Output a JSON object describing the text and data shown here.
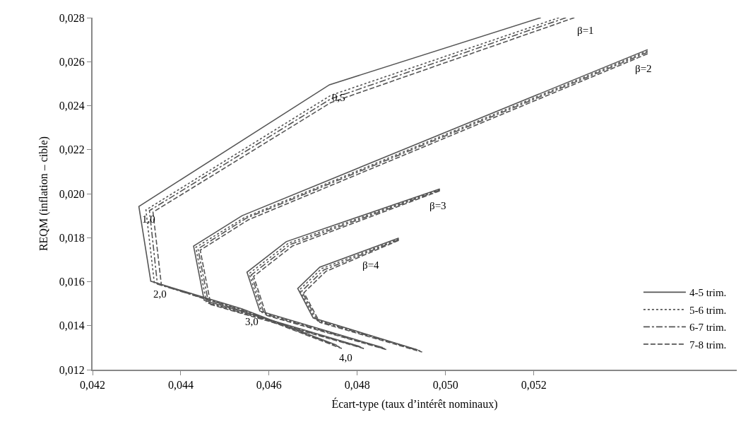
{
  "chart_data": {
    "type": "line",
    "xlabel": "Écart-type (taux d’intérêt nominaux)",
    "ylabel": "REQM (inflation – cible)",
    "xlim": [
      0.042,
      0.0566
    ],
    "ylim": [
      0.012,
      0.028
    ],
    "xticks": [
      {
        "value": 0.042,
        "label": "0,042"
      },
      {
        "value": 0.044,
        "label": "0,044"
      },
      {
        "value": 0.046,
        "label": "0,046"
      },
      {
        "value": 0.048,
        "label": "0,048"
      },
      {
        "value": 0.05,
        "label": "0,050"
      },
      {
        "value": 0.052,
        "label": "0,052"
      }
    ],
    "yticks": [
      {
        "value": 0.012,
        "label": "0,012"
      },
      {
        "value": 0.014,
        "label": "0,014"
      },
      {
        "value": 0.016,
        "label": "0,016"
      },
      {
        "value": 0.018,
        "label": "0,018"
      },
      {
        "value": 0.02,
        "label": "0,020"
      },
      {
        "value": 0.022,
        "label": "0,022"
      },
      {
        "value": 0.024,
        "label": "0,024"
      },
      {
        "value": 0.026,
        "label": "0,026"
      },
      {
        "value": 0.028,
        "label": "0,028"
      }
    ],
    "grid": false,
    "legend": "bottom right",
    "marker": "none",
    "series": [
      {
        "name": "4-5 trim.",
        "color": "#555555",
        "line_style": "solid",
        "x": [
          0.05216,
          0.04737,
          0.04305,
          0.04332,
          0.04539,
          0.04753
        ],
        "values": [
          0.028,
          0.02495,
          0.01942,
          0.01602,
          0.01476,
          0.01312
        ]
      },
      {
        "name": "5-6 trim.",
        "color": "#555555",
        "line_style": "dotted",
        "x": [
          0.05257,
          0.0474,
          0.04321,
          0.0434,
          0.04547,
          0.04756
        ],
        "values": [
          0.028,
          0.02447,
          0.01926,
          0.01595,
          0.01467,
          0.01306
        ]
      },
      {
        "name": "6-7 trim.",
        "color": "#555555",
        "line_style": "dashdot",
        "x": [
          0.05273,
          0.0474,
          0.04329,
          0.04347,
          0.04555,
          0.0476
        ],
        "values": [
          0.028,
          0.02431,
          0.01923,
          0.01589,
          0.0146,
          0.01303
        ]
      },
      {
        "name": "7-8 trim.",
        "color": "#555555",
        "line_style": "dashed",
        "x": [
          0.05292,
          0.0474,
          0.04337,
          0.04356,
          0.04563,
          0.04765
        ],
        "values": [
          0.028,
          0.02414,
          0.01916,
          0.01586,
          0.01451,
          0.01296
        ]
      },
      {
        "color": "#555555",
        "line_style": "solid",
        "x": [
          0.05458,
          0.04539,
          0.04429,
          0.04453,
          0.04805
        ],
        "values": [
          0.02655,
          0.019,
          0.01762,
          0.01515,
          0.01306
        ]
      },
      {
        "color": "#555555",
        "line_style": "dotted",
        "x": [
          0.05458,
          0.04544,
          0.04434,
          0.04458,
          0.04808
        ],
        "values": [
          0.02649,
          0.01891,
          0.01756,
          0.01508,
          0.01303
        ]
      },
      {
        "color": "#555555",
        "line_style": "dashdot",
        "x": [
          0.05458,
          0.04548,
          0.04439,
          0.04463,
          0.04811
        ],
        "values": [
          0.02643,
          0.01888,
          0.01749,
          0.01502,
          0.013
        ]
      },
      {
        "color": "#555555",
        "line_style": "dashed",
        "x": [
          0.05458,
          0.04553,
          0.04444,
          0.04468,
          0.04815
        ],
        "values": [
          0.02636,
          0.01881,
          0.01743,
          0.01496,
          0.01296
        ]
      },
      {
        "color": "#555555",
        "line_style": "solid",
        "x": [
          0.04987,
          0.04639,
          0.0455,
          0.04579,
          0.04858
        ],
        "values": [
          0.02022,
          0.01782,
          0.01643,
          0.01467,
          0.013
        ]
      },
      {
        "color": "#555555",
        "line_style": "dotted",
        "x": [
          0.04987,
          0.04644,
          0.04555,
          0.04584,
          0.04861
        ],
        "values": [
          0.02019,
          0.01775,
          0.01637,
          0.0146,
          0.01296
        ]
      },
      {
        "color": "#555555",
        "line_style": "dashdot",
        "x": [
          0.04987,
          0.04648,
          0.0456,
          0.04589,
          0.04865
        ],
        "values": [
          0.02016,
          0.01769,
          0.01631,
          0.01454,
          0.01293
        ]
      },
      {
        "color": "#555555",
        "line_style": "dashed",
        "x": [
          0.04987,
          0.04653,
          0.04565,
          0.04594,
          0.04868
        ],
        "values": [
          0.02013,
          0.01762,
          0.01624,
          0.01447,
          0.0129
        ]
      },
      {
        "color": "#555555",
        "line_style": "solid",
        "x": [
          0.04894,
          0.04715,
          0.04665,
          0.047,
          0.04937
        ],
        "values": [
          0.01798,
          0.01666,
          0.01569,
          0.01435,
          0.0129
        ]
      },
      {
        "color": "#555555",
        "line_style": "dotted",
        "x": [
          0.04894,
          0.04719,
          0.04669,
          0.04705,
          0.0494
        ],
        "values": [
          0.01794,
          0.01659,
          0.01563,
          0.01428,
          0.01287
        ]
      },
      {
        "color": "#555555",
        "line_style": "dashdot",
        "x": [
          0.04894,
          0.04724,
          0.04674,
          0.0471,
          0.04944
        ],
        "values": [
          0.01791,
          0.01653,
          0.01557,
          0.01422,
          0.01284
        ]
      },
      {
        "color": "#555555",
        "line_style": "dashed",
        "x": [
          0.04894,
          0.04729,
          0.04679,
          0.04715,
          0.04947
        ],
        "values": [
          0.01788,
          0.01647,
          0.0155,
          0.01415,
          0.0128
        ]
      }
    ],
    "annotations": [
      {
        "text": "0,5",
        "x": 0.04737,
        "y": 0.02495
      },
      {
        "text": "1,0",
        "x": 0.04305,
        "y": 0.01942
      },
      {
        "text": "2,0",
        "x": 0.04332,
        "y": 0.01602
      },
      {
        "text": "3,0",
        "x": 0.04539,
        "y": 0.01476
      },
      {
        "text": "4,0",
        "x": 0.04753,
        "y": 0.01312
      },
      {
        "text": "β=1",
        "x": 0.05292,
        "y": 0.028
      },
      {
        "text": "β=2",
        "x": 0.05423,
        "y": 0.02626
      },
      {
        "text": "β=3",
        "x": 0.04958,
        "y": 0.02002
      },
      {
        "text": "β=4",
        "x": 0.04805,
        "y": 0.01732
      }
    ]
  }
}
